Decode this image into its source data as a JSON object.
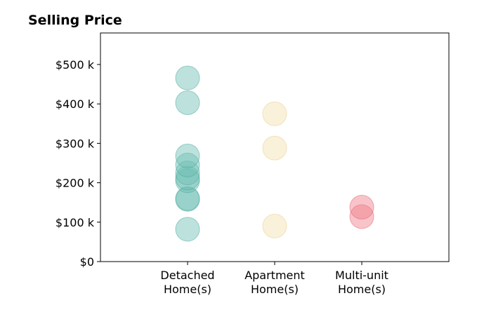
{
  "chart_data": {
    "type": "scatter",
    "title": "Selling Price",
    "xlabel": "",
    "ylabel": "",
    "ylim": [
      0,
      580000
    ],
    "xlim": [
      -1,
      3
    ],
    "grid": false,
    "legend": "none",
    "y_ticks": [
      {
        "value": 0,
        "label": "$0"
      },
      {
        "value": 100000,
        "label": "$100 k"
      },
      {
        "value": 200000,
        "label": "$200 k"
      },
      {
        "value": 300000,
        "label": "$300 k"
      },
      {
        "value": 400000,
        "label": "$400 k"
      },
      {
        "value": 500000,
        "label": "$500 k"
      }
    ],
    "categories": [
      {
        "line1": "Detached",
        "line2": "Home(s)"
      },
      {
        "line1": "Apartment",
        "line2": "Home(s)"
      },
      {
        "line1": "Multi-unit",
        "line2": "Home(s)"
      }
    ],
    "series": [
      {
        "category_index": 0,
        "color": "#6dbfb4",
        "stroke": "#4aa89c",
        "values": [
          82000,
          158000,
          160000,
          205000,
          212000,
          225000,
          245000,
          268000,
          403000,
          466000
        ]
      },
      {
        "category_index": 1,
        "color": "#f5dfae",
        "stroke": "#e9cc8c",
        "values": [
          90000,
          288000,
          375000
        ]
      },
      {
        "category_index": 2,
        "color": "#f07d88",
        "stroke": "#e0606d",
        "values": [
          114000,
          138000
        ]
      }
    ]
  }
}
